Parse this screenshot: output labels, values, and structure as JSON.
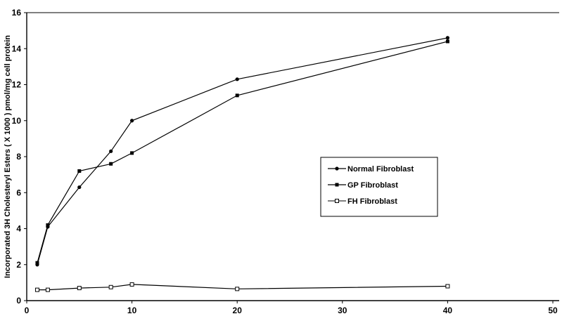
{
  "chart_data": {
    "type": "line",
    "title": "",
    "xlabel": "",
    "ylabel": "Incorporated 3H Cholesteryl Esters ( X 1000 ) pmol/mg cell protein",
    "xlim": [
      0,
      50
    ],
    "ylim": [
      0,
      16
    ],
    "x_ticks": [
      "0",
      "10",
      "20",
      "30",
      "40",
      "50"
    ],
    "y_ticks": [
      "0",
      "2",
      "4",
      "6",
      "8",
      "10",
      "12",
      "14",
      "16"
    ],
    "grid": false,
    "legend_position": "center-right",
    "series": [
      {
        "name": "Normal Fibroblast",
        "marker": "filled-circle",
        "color": "#000000",
        "x": [
          1,
          2,
          5,
          8,
          10,
          20,
          40
        ],
        "y": [
          2.0,
          4.1,
          6.3,
          8.3,
          10.0,
          12.3,
          14.6
        ]
      },
      {
        "name": "GP Fibroblast",
        "marker": "filled-square",
        "color": "#000000",
        "x": [
          1,
          2,
          5,
          8,
          10,
          20,
          40
        ],
        "y": [
          2.1,
          4.2,
          7.2,
          7.6,
          8.2,
          11.4,
          14.4
        ]
      },
      {
        "name": "FH Fibroblast",
        "marker": "open-square",
        "color": "#000000",
        "x": [
          1,
          2,
          5,
          8,
          10,
          20,
          40
        ],
        "y": [
          0.6,
          0.6,
          0.7,
          0.75,
          0.9,
          0.65,
          0.8
        ]
      }
    ]
  }
}
